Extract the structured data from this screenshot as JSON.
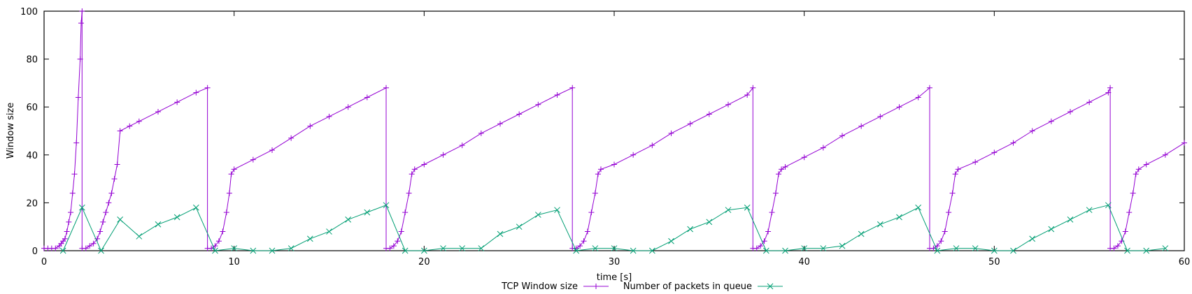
{
  "chart_data": {
    "type": "line",
    "xlabel": "time [s]",
    "ylabel": "Window size",
    "xlim": [
      0,
      60
    ],
    "ylim": [
      0,
      100
    ],
    "x_ticks": [
      0,
      10,
      20,
      30,
      40,
      50,
      60
    ],
    "y_ticks": [
      0,
      20,
      40,
      60,
      80,
      100
    ],
    "grid": false,
    "legend_position": "bottom-center",
    "series": [
      {
        "name": "TCP Window size",
        "color": "#9400d3",
        "marker": "plus",
        "points": [
          [
            0.0,
            1
          ],
          [
            0.2,
            1
          ],
          [
            0.4,
            1
          ],
          [
            0.6,
            1
          ],
          [
            0.8,
            2
          ],
          [
            0.9,
            3
          ],
          [
            1.0,
            4
          ],
          [
            1.1,
            5
          ],
          [
            1.2,
            8
          ],
          [
            1.3,
            12
          ],
          [
            1.4,
            16
          ],
          [
            1.5,
            24
          ],
          [
            1.6,
            32
          ],
          [
            1.7,
            45
          ],
          [
            1.8,
            64
          ],
          [
            1.9,
            80
          ],
          [
            1.95,
            95
          ],
          [
            2.0,
            100
          ],
          [
            2.0,
            1
          ],
          [
            2.2,
            1
          ],
          [
            2.4,
            2
          ],
          [
            2.6,
            3
          ],
          [
            2.8,
            5
          ],
          [
            2.95,
            8
          ],
          [
            3.1,
            12
          ],
          [
            3.25,
            16
          ],
          [
            3.4,
            20
          ],
          [
            3.55,
            24
          ],
          [
            3.7,
            30
          ],
          [
            3.85,
            36
          ],
          [
            4.0,
            50
          ],
          [
            4.5,
            52
          ],
          [
            5.0,
            54
          ],
          [
            6.0,
            58
          ],
          [
            7.0,
            62
          ],
          [
            8.0,
            66
          ],
          [
            8.6,
            68
          ],
          [
            8.6,
            1
          ],
          [
            8.8,
            1
          ],
          [
            9.0,
            2
          ],
          [
            9.2,
            4
          ],
          [
            9.4,
            8
          ],
          [
            9.6,
            16
          ],
          [
            9.75,
            24
          ],
          [
            9.85,
            32
          ],
          [
            10.0,
            34
          ],
          [
            11.0,
            38
          ],
          [
            12.0,
            42
          ],
          [
            13.0,
            47
          ],
          [
            14.0,
            52
          ],
          [
            15.0,
            56
          ],
          [
            16.0,
            60
          ],
          [
            17.0,
            64
          ],
          [
            18.0,
            68
          ],
          [
            18.0,
            1
          ],
          [
            18.2,
            1
          ],
          [
            18.4,
            2
          ],
          [
            18.6,
            4
          ],
          [
            18.8,
            8
          ],
          [
            19.0,
            16
          ],
          [
            19.2,
            24
          ],
          [
            19.35,
            32
          ],
          [
            19.5,
            34
          ],
          [
            20.0,
            36
          ],
          [
            21.0,
            40
          ],
          [
            22.0,
            44
          ],
          [
            23.0,
            49
          ],
          [
            24.0,
            53
          ],
          [
            25.0,
            57
          ],
          [
            26.0,
            61
          ],
          [
            27.0,
            65
          ],
          [
            27.8,
            68
          ],
          [
            27.8,
            1
          ],
          [
            28.0,
            1
          ],
          [
            28.2,
            2
          ],
          [
            28.4,
            4
          ],
          [
            28.6,
            8
          ],
          [
            28.8,
            16
          ],
          [
            29.0,
            24
          ],
          [
            29.15,
            32
          ],
          [
            29.3,
            34
          ],
          [
            30.0,
            36
          ],
          [
            31.0,
            40
          ],
          [
            32.0,
            44
          ],
          [
            33.0,
            49
          ],
          [
            34.0,
            53
          ],
          [
            35.0,
            57
          ],
          [
            36.0,
            61
          ],
          [
            37.0,
            65
          ],
          [
            37.3,
            68
          ],
          [
            37.3,
            1
          ],
          [
            37.5,
            1
          ],
          [
            37.7,
            2
          ],
          [
            37.9,
            4
          ],
          [
            38.1,
            8
          ],
          [
            38.3,
            16
          ],
          [
            38.5,
            24
          ],
          [
            38.65,
            32
          ],
          [
            38.8,
            34
          ],
          [
            39.0,
            35
          ],
          [
            40.0,
            39
          ],
          [
            41.0,
            43
          ],
          [
            42.0,
            48
          ],
          [
            43.0,
            52
          ],
          [
            44.0,
            56
          ],
          [
            45.0,
            60
          ],
          [
            46.0,
            64
          ],
          [
            46.6,
            68
          ],
          [
            46.6,
            1
          ],
          [
            46.8,
            1
          ],
          [
            47.0,
            2
          ],
          [
            47.2,
            4
          ],
          [
            47.4,
            8
          ],
          [
            47.6,
            16
          ],
          [
            47.8,
            24
          ],
          [
            47.95,
            32
          ],
          [
            48.1,
            34
          ],
          [
            49.0,
            37
          ],
          [
            50.0,
            41
          ],
          [
            51.0,
            45
          ],
          [
            52.0,
            50
          ],
          [
            53.0,
            54
          ],
          [
            54.0,
            58
          ],
          [
            55.0,
            62
          ],
          [
            56.0,
            66
          ],
          [
            56.1,
            68
          ],
          [
            56.1,
            1
          ],
          [
            56.3,
            1
          ],
          [
            56.5,
            2
          ],
          [
            56.7,
            4
          ],
          [
            56.9,
            8
          ],
          [
            57.1,
            16
          ],
          [
            57.3,
            24
          ],
          [
            57.45,
            32
          ],
          [
            57.6,
            34
          ],
          [
            58.0,
            36
          ],
          [
            59.0,
            40
          ],
          [
            60.0,
            45
          ]
        ]
      },
      {
        "name": "Number of packets in queue",
        "color": "#009e73",
        "marker": "cross",
        "points": [
          [
            1,
            0
          ],
          [
            2,
            18
          ],
          [
            3,
            0
          ],
          [
            4,
            13
          ],
          [
            5,
            6
          ],
          [
            6,
            11
          ],
          [
            7,
            14
          ],
          [
            8,
            18
          ],
          [
            9,
            0
          ],
          [
            10,
            1
          ],
          [
            11,
            0
          ],
          [
            12,
            0
          ],
          [
            13,
            1
          ],
          [
            14,
            5
          ],
          [
            15,
            8
          ],
          [
            16,
            13
          ],
          [
            17,
            16
          ],
          [
            18,
            19
          ],
          [
            19,
            0
          ],
          [
            20,
            0
          ],
          [
            21,
            1
          ],
          [
            22,
            1
          ],
          [
            23,
            1
          ],
          [
            24,
            7
          ],
          [
            25,
            10
          ],
          [
            26,
            15
          ],
          [
            27,
            17
          ],
          [
            28,
            0
          ],
          [
            29,
            1
          ],
          [
            30,
            1
          ],
          [
            31,
            0
          ],
          [
            32,
            0
          ],
          [
            33,
            4
          ],
          [
            34,
            9
          ],
          [
            35,
            12
          ],
          [
            36,
            17
          ],
          [
            37,
            18
          ],
          [
            38,
            0
          ],
          [
            39,
            0
          ],
          [
            40,
            1
          ],
          [
            41,
            1
          ],
          [
            42,
            2
          ],
          [
            43,
            7
          ],
          [
            44,
            11
          ],
          [
            45,
            14
          ],
          [
            46,
            18
          ],
          [
            47,
            0
          ],
          [
            48,
            1
          ],
          [
            49,
            1
          ],
          [
            50,
            0
          ],
          [
            51,
            0
          ],
          [
            52,
            5
          ],
          [
            53,
            9
          ],
          [
            54,
            13
          ],
          [
            55,
            17
          ],
          [
            56,
            19
          ],
          [
            57,
            0
          ],
          [
            58,
            0
          ],
          [
            59,
            1
          ]
        ]
      }
    ]
  }
}
